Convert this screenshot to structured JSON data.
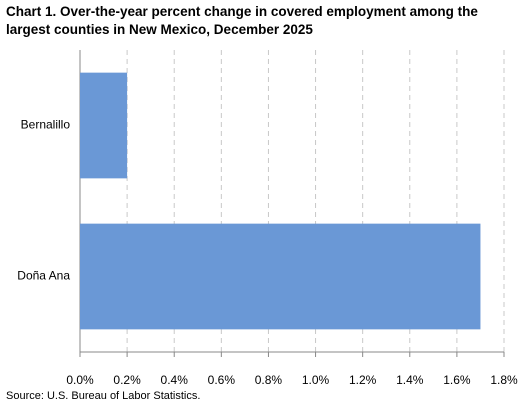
{
  "chart_data": {
    "type": "hbar",
    "title": "Chart 1.  Over-the-year percent change in covered employment among the largest counties in New Mexico, December 2025",
    "categories": [
      "Bernalillo",
      "Doña Ana"
    ],
    "values": [
      0.2,
      1.7
    ],
    "color": "#6a98d6",
    "xlim": [
      0,
      1.8
    ],
    "xticks": [
      {
        "value": 0,
        "label": "0.0%"
      },
      {
        "value": 0.2,
        "label": "0.2%"
      },
      {
        "value": 0.4,
        "label": "0.4%"
      },
      {
        "value": 0.6,
        "label": "0.6%"
      },
      {
        "value": 0.8,
        "label": "0.8%"
      },
      {
        "value": 1.0,
        "label": "1.0%"
      },
      {
        "value": 1.2,
        "label": "1.2%"
      },
      {
        "value": 1.4,
        "label": "1.4%"
      },
      {
        "value": 1.6,
        "label": "1.6%"
      },
      {
        "value": 1.8,
        "label": "1.8%"
      }
    ],
    "grid": true,
    "source": "Source: U.S. Bureau of Labor Statistics."
  }
}
